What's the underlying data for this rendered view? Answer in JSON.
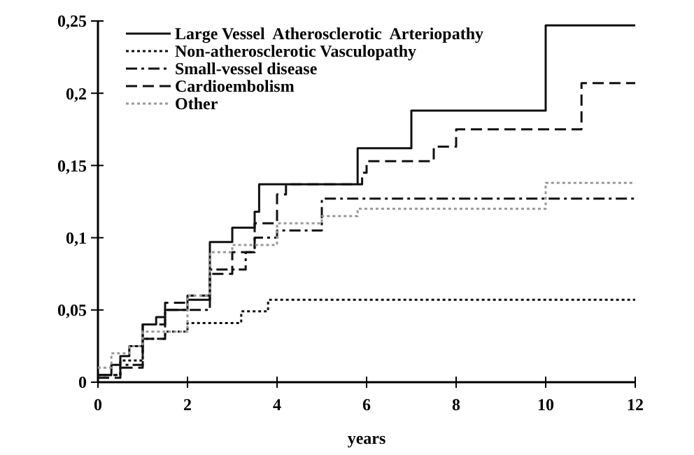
{
  "chart_data": {
    "type": "step",
    "xlabel": "years",
    "legend": "top left",
    "xlim": [
      0,
      12
    ],
    "ylim": [
      0,
      0.25
    ],
    "xticks": [
      0,
      2,
      4,
      6,
      8,
      10,
      12
    ],
    "yticks": [
      0,
      {
        "value": 0.05,
        "label": "0,05"
      },
      {
        "value": 0.1,
        "label": "0,1"
      },
      {
        "value": 0.15,
        "label": "0,15"
      },
      {
        "value": 0.2,
        "label": "0,2"
      },
      {
        "value": 0.25,
        "label": "0,25"
      }
    ],
    "series": [
      {
        "name": "Large Vessel  Atherosclerotic  Arteriopathy",
        "color": "#111111",
        "line_style": "solid",
        "x": [
          0,
          0.3,
          0.5,
          0.7,
          1,
          1.3,
          1.5,
          2,
          2.5,
          3,
          3.5,
          3.6,
          5.8,
          7,
          10,
          12
        ],
        "values": [
          0.005,
          0.012,
          0.018,
          0.025,
          0.04,
          0.045,
          0.05,
          0.057,
          0.097,
          0.107,
          0.118,
          0.137,
          0.162,
          0.188,
          0.247,
          0.247
        ]
      },
      {
        "name": "Non-atherosclerotic Vasculopathy",
        "color": "#111111",
        "line_style": "dotted",
        "x": [
          0,
          0.5,
          1,
          1.5,
          2,
          3.2,
          3.8,
          12
        ],
        "values": [
          0.005,
          0.015,
          0.03,
          0.035,
          0.041,
          0.049,
          0.057,
          0.057
        ]
      },
      {
        "name": "Small-vessel disease",
        "color": "#111111",
        "line_style": "dashdot",
        "x": [
          0,
          0.5,
          1,
          1.5,
          2.5,
          3.3,
          3.5,
          4,
          5,
          12
        ],
        "values": [
          0.005,
          0.012,
          0.04,
          0.05,
          0.078,
          0.09,
          0.1,
          0.105,
          0.127,
          0.127
        ]
      },
      {
        "name": "Cardioembolism",
        "color": "#111111",
        "line_style": "dashed",
        "x": [
          0,
          0.5,
          1,
          1.5,
          2,
          2.5,
          3,
          3.5,
          4,
          4.2,
          5.9,
          6,
          7.5,
          8,
          10.8,
          12
        ],
        "values": [
          0.003,
          0.01,
          0.03,
          0.055,
          0.06,
          0.075,
          0.09,
          0.11,
          0.13,
          0.137,
          0.145,
          0.153,
          0.163,
          0.175,
          0.207,
          0.207
        ]
      },
      {
        "name": "Other",
        "color": "#999999",
        "line_style": "dotted",
        "x": [
          0,
          0.3,
          0.7,
          1,
          2,
          2.5,
          3,
          4,
          5,
          5.8,
          10,
          12
        ],
        "values": [
          0.01,
          0.02,
          0.025,
          0.035,
          0.06,
          0.09,
          0.095,
          0.11,
          0.115,
          0.12,
          0.138,
          0.138
        ]
      }
    ]
  }
}
